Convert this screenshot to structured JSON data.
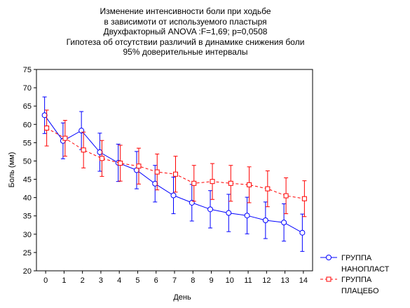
{
  "chart_data": {
    "type": "line",
    "title_lines": [
      "Изменение интенсивности боли при ходьбе",
      "в зависимоти от используемого пластыря",
      "Двухфакторный ANOVA :F=1,69; p=0,0508",
      "Гипотеза об отсутствии различий в динамике снижения боли",
      "95% доверительные интервалы"
    ],
    "xlabel": "День",
    "ylabel": "Боль (мм)",
    "x": [
      0,
      1,
      2,
      3,
      4,
      5,
      6,
      7,
      8,
      9,
      10,
      11,
      12,
      13,
      14
    ],
    "x_tick_labels": [
      "0",
      "1",
      "2",
      "3",
      "4",
      "5",
      "6",
      "7",
      "8",
      "9",
      "10",
      "11",
      "12",
      "13",
      "14"
    ],
    "xlim": [
      -0.5,
      14.5
    ],
    "ylim": [
      20,
      75
    ],
    "y_ticks": [
      20,
      25,
      30,
      35,
      40,
      45,
      50,
      55,
      60,
      65,
      70,
      75
    ],
    "grid": false,
    "legend_position": "bottom-right",
    "series": [
      {
        "name": "ГРУППА НАНОПЛАСТ",
        "legend_lines": [
          "ГРУППА",
          "НАНОПЛАСТ"
        ],
        "color": "#0000ff",
        "marker": "circle",
        "line_style": "solid",
        "values": [
          62.5,
          55.5,
          58.3,
          52.4,
          49.5,
          47.5,
          43.8,
          40.6,
          38.6,
          36.8,
          35.8,
          35.1,
          33.8,
          33.2,
          30.4
        ],
        "ci_low": [
          57.5,
          50.6,
          53.1,
          47.2,
          44.4,
          42.4,
          38.8,
          35.6,
          33.6,
          31.7,
          30.7,
          30.1,
          28.8,
          28.1,
          25.3
        ],
        "ci_high": [
          67.5,
          60.4,
          63.5,
          57.6,
          54.6,
          52.6,
          48.8,
          45.6,
          43.6,
          41.9,
          40.9,
          40.1,
          38.8,
          38.3,
          35.5
        ]
      },
      {
        "name": "ГРУППА ПЛАЦЕБО",
        "legend_lines": [
          "ГРУППА",
          "ПЛАЦЕБО"
        ],
        "color": "#ff0000",
        "marker": "square",
        "line_style": "dashed",
        "values": [
          59.0,
          56.2,
          53.0,
          50.7,
          49.4,
          48.6,
          47.0,
          46.4,
          43.9,
          44.4,
          43.9,
          43.5,
          42.4,
          40.5,
          39.7
        ],
        "ci_low": [
          54.1,
          51.3,
          48.1,
          45.8,
          44.5,
          43.7,
          42.1,
          41.5,
          39.0,
          39.5,
          39.0,
          38.6,
          37.5,
          35.6,
          34.8
        ],
        "ci_high": [
          63.9,
          61.1,
          57.9,
          55.6,
          54.3,
          53.5,
          51.9,
          51.3,
          48.8,
          49.3,
          48.8,
          48.4,
          47.3,
          45.4,
          44.6
        ]
      }
    ]
  }
}
